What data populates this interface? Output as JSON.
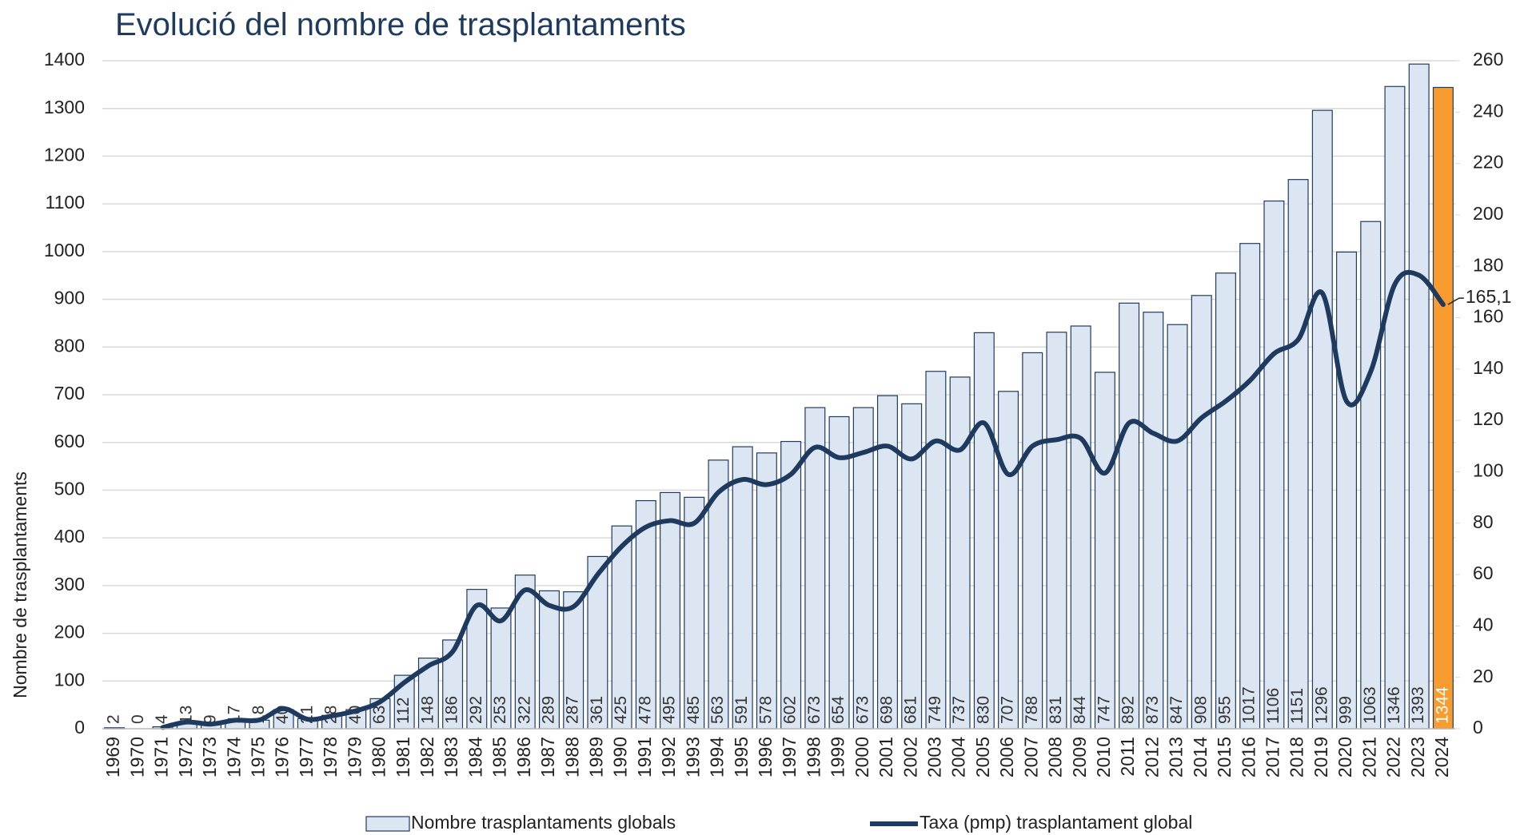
{
  "chart_data": {
    "type": "bar_line",
    "title": "Evolució del nombre de trasplantaments",
    "ylabel": "Nombre de trasplantaments",
    "categories": [
      "1969",
      "1970",
      "1971",
      "1972",
      "1973",
      "1974",
      "1975",
      "1976",
      "1977",
      "1978",
      "1979",
      "1980",
      "1981",
      "1982",
      "1983",
      "1984",
      "1985",
      "1986",
      "1987",
      "1988",
      "1989",
      "1990",
      "1991",
      "1992",
      "1993",
      "1994",
      "1995",
      "1996",
      "1997",
      "1998",
      "1999",
      "2000",
      "2001",
      "2002",
      "2003",
      "2004",
      "2005",
      "2006",
      "2007",
      "2008",
      "2009",
      "2010",
      "2011",
      "2012",
      "2013",
      "2014",
      "2015",
      "2016",
      "2017",
      "2018",
      "2019",
      "2020",
      "2021",
      "2022",
      "2023",
      "2024"
    ],
    "series": [
      {
        "name": "Nombre trasplantaments globals",
        "type": "bar",
        "color": "#dce6f2",
        "edge_color": "#1f3a5f",
        "colors": [
          "#dce6f2",
          "#dce6f2",
          "#dce6f2",
          "#dce6f2",
          "#dce6f2",
          "#dce6f2",
          "#dce6f2",
          "#dce6f2",
          "#dce6f2",
          "#dce6f2",
          "#dce6f2",
          "#dce6f2",
          "#dce6f2",
          "#dce6f2",
          "#dce6f2",
          "#dce6f2",
          "#dce6f2",
          "#dce6f2",
          "#dce6f2",
          "#dce6f2",
          "#dce6f2",
          "#dce6f2",
          "#dce6f2",
          "#dce6f2",
          "#dce6f2",
          "#dce6f2",
          "#dce6f2",
          "#dce6f2",
          "#dce6f2",
          "#dce6f2",
          "#dce6f2",
          "#dce6f2",
          "#dce6f2",
          "#dce6f2",
          "#dce6f2",
          "#dce6f2",
          "#dce6f2",
          "#dce6f2",
          "#dce6f2",
          "#dce6f2",
          "#dce6f2",
          "#dce6f2",
          "#dce6f2",
          "#dce6f2",
          "#dce6f2",
          "#dce6f2",
          "#dce6f2",
          "#dce6f2",
          "#dce6f2",
          "#dce6f2",
          "#dce6f2",
          "#dce6f2",
          "#dce6f2",
          "#dce6f2",
          "#dce6f2",
          "#f89c2f"
        ],
        "values": [
          2,
          0,
          4,
          13,
          9,
          17,
          18,
          40,
          21,
          28,
          40,
          63,
          112,
          148,
          186,
          292,
          253,
          322,
          289,
          287,
          361,
          425,
          478,
          495,
          485,
          563,
          591,
          578,
          602,
          673,
          654,
          673,
          698,
          681,
          749,
          737,
          830,
          707,
          788,
          831,
          844,
          747,
          892,
          873,
          847,
          908,
          955,
          1017,
          1106,
          1151,
          1296,
          999,
          1063,
          1346,
          1393,
          1344
        ]
      },
      {
        "name": "Taxa (pmp) trasplantament global",
        "type": "line",
        "axis": "y2",
        "color": "#1f3a5f",
        "values": [
          null,
          null,
          0.5,
          2.6,
          1.8,
          3.3,
          3.4,
          7.8,
          3.7,
          5,
          7,
          10.5,
          18,
          24.5,
          30,
          48,
          42,
          54,
          48,
          47.5,
          60,
          71,
          78.5,
          81,
          80,
          92,
          97,
          95,
          99,
          109.5,
          105.5,
          107.5,
          110,
          105,
          112,
          108.5,
          119,
          99,
          110,
          112.5,
          113,
          99.5,
          119,
          115,
          112,
          121,
          127.5,
          135.5,
          146,
          151.5,
          169.5,
          127.5,
          139,
          173,
          176.5,
          165.1
        ],
        "value_labels": [
          null,
          null,
          null,
          null,
          null,
          null,
          null,
          null,
          null,
          null,
          null,
          null,
          null,
          null,
          null,
          null,
          null,
          null,
          null,
          null,
          null,
          null,
          null,
          null,
          null,
          null,
          null,
          null,
          null,
          null,
          null,
          null,
          null,
          null,
          null,
          null,
          null,
          null,
          null,
          null,
          null,
          null,
          null,
          null,
          null,
          null,
          null,
          null,
          null,
          null,
          null,
          null,
          null,
          null,
          null,
          "165,1"
        ]
      }
    ],
    "ylim": [
      0,
      1400
    ],
    "yticks": [
      0,
      100,
      200,
      300,
      400,
      500,
      600,
      700,
      800,
      900,
      1000,
      1100,
      1200,
      1300,
      1400
    ],
    "y2lim": [
      0,
      260
    ],
    "y2ticks": [
      0,
      20,
      40,
      60,
      80,
      100,
      120,
      140,
      160,
      180,
      200,
      220,
      240,
      260
    ],
    "grid": true,
    "legend": "bottom"
  }
}
